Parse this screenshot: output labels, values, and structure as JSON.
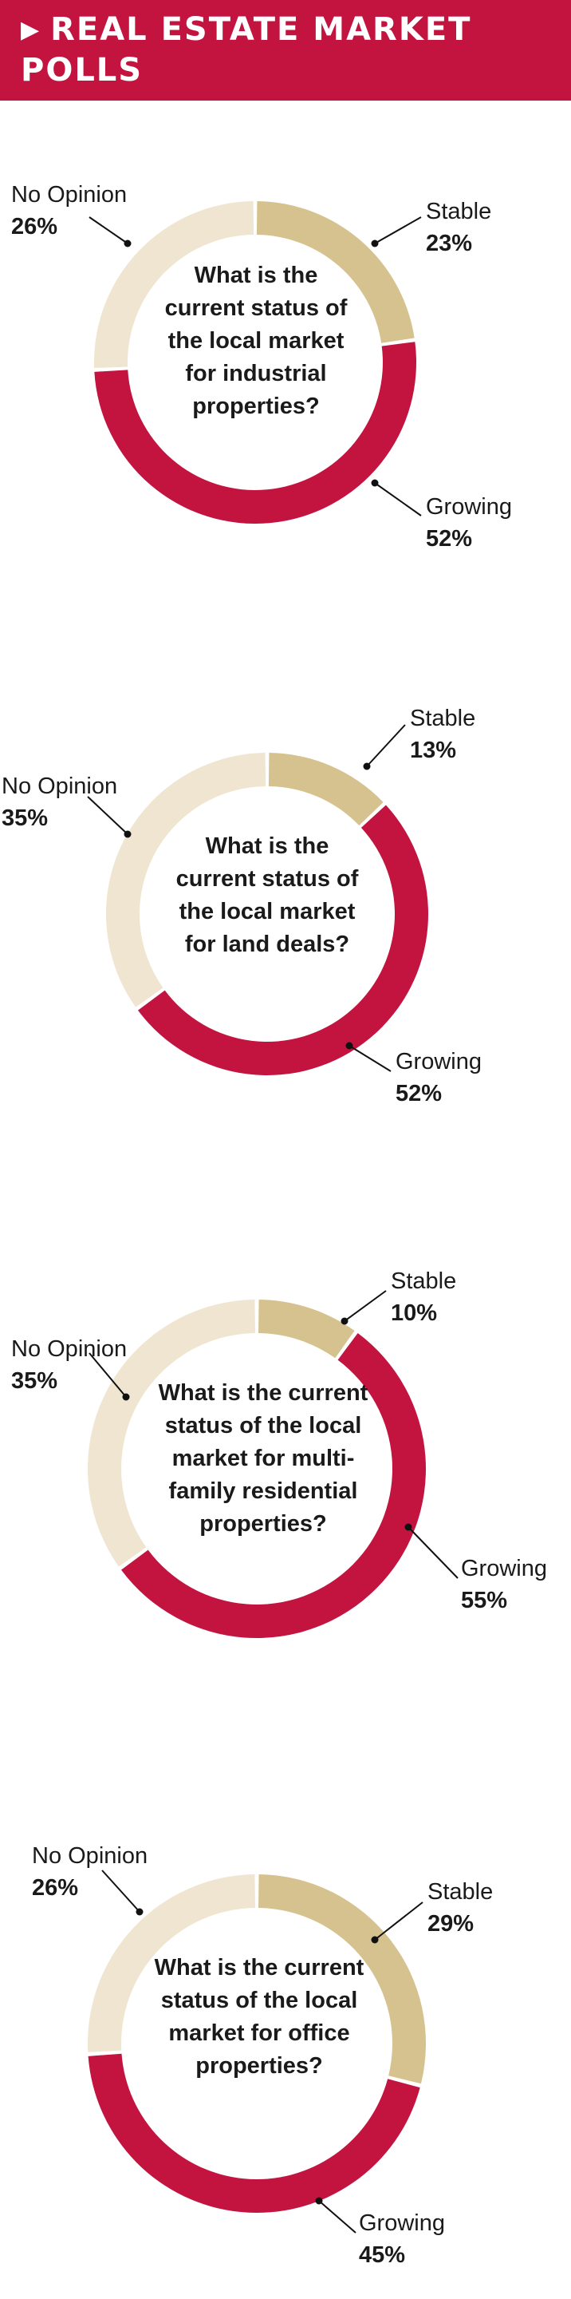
{
  "header": {
    "title": "REAL ESTATE MARKET POLLS",
    "arrow_icon": "triangle-right-icon"
  },
  "colors": {
    "stable": "#d5c28e",
    "growing": "#c3133f",
    "no_opinion": "#efe5d0",
    "header": "#c3133f"
  },
  "chart_data": [
    {
      "type": "pie",
      "title": "What is the current status of the local market for industrial properties?",
      "categories": [
        "Stable",
        "Growing",
        "No Opinion"
      ],
      "values": [
        23,
        52,
        26
      ],
      "labels": [
        "23%",
        "52%",
        "26%"
      ]
    },
    {
      "type": "pie",
      "title": "What is the current status of the local market for land deals?",
      "categories": [
        "Stable",
        "Growing",
        "No Opinion"
      ],
      "values": [
        13,
        52,
        35
      ],
      "labels": [
        "13%",
        "52%",
        "35%"
      ]
    },
    {
      "type": "pie",
      "title": "What is the current status of the local market for multi-family residential properties?",
      "categories": [
        "Stable",
        "Growing",
        "No Opinion"
      ],
      "values": [
        10,
        55,
        35
      ],
      "labels": [
        "10%",
        "55%",
        "35%"
      ]
    },
    {
      "type": "pie",
      "title": "What is the current status of the local market for office properties?",
      "categories": [
        "Stable",
        "Growing",
        "No Opinion"
      ],
      "values": [
        29,
        45,
        26
      ],
      "labels": [
        "29%",
        "45%",
        "26%"
      ]
    }
  ]
}
